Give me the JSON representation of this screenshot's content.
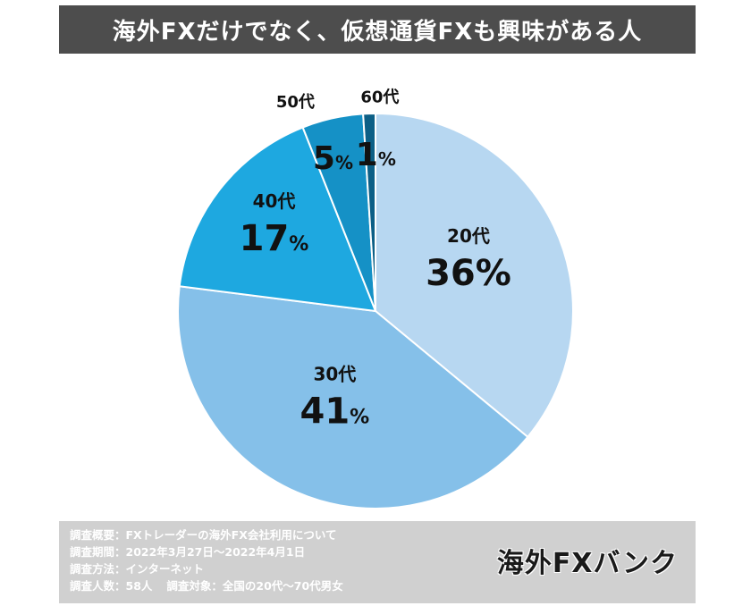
{
  "title": "海外FXだけでなく、仮想通貨FXも興味がある人",
  "chart_data": {
    "type": "pie",
    "categories": [
      "20代",
      "30代",
      "40代",
      "50代",
      "60代"
    ],
    "values": [
      36,
      41,
      17,
      5,
      1
    ],
    "value_labels": [
      "36",
      "41",
      "17",
      "5",
      "1"
    ],
    "unit": "%",
    "colors": [
      "#b7d7f1",
      "#85c0e9",
      "#1ea8e0",
      "#1591c6",
      "#0c5f86"
    ],
    "start_angle_deg": 0,
    "direction": "clockwise"
  },
  "footer": {
    "survey_summary": "調査概要：FXトレーダーの海外FX会社利用について",
    "survey_period": "調査期間：2022年3月27日～2022年4月1日",
    "survey_method": "調査方法：インターネット",
    "respondents": "調査人数：58人",
    "target": "調査対象：全国の20代～70代男女",
    "logo": "海外FXバンク"
  }
}
